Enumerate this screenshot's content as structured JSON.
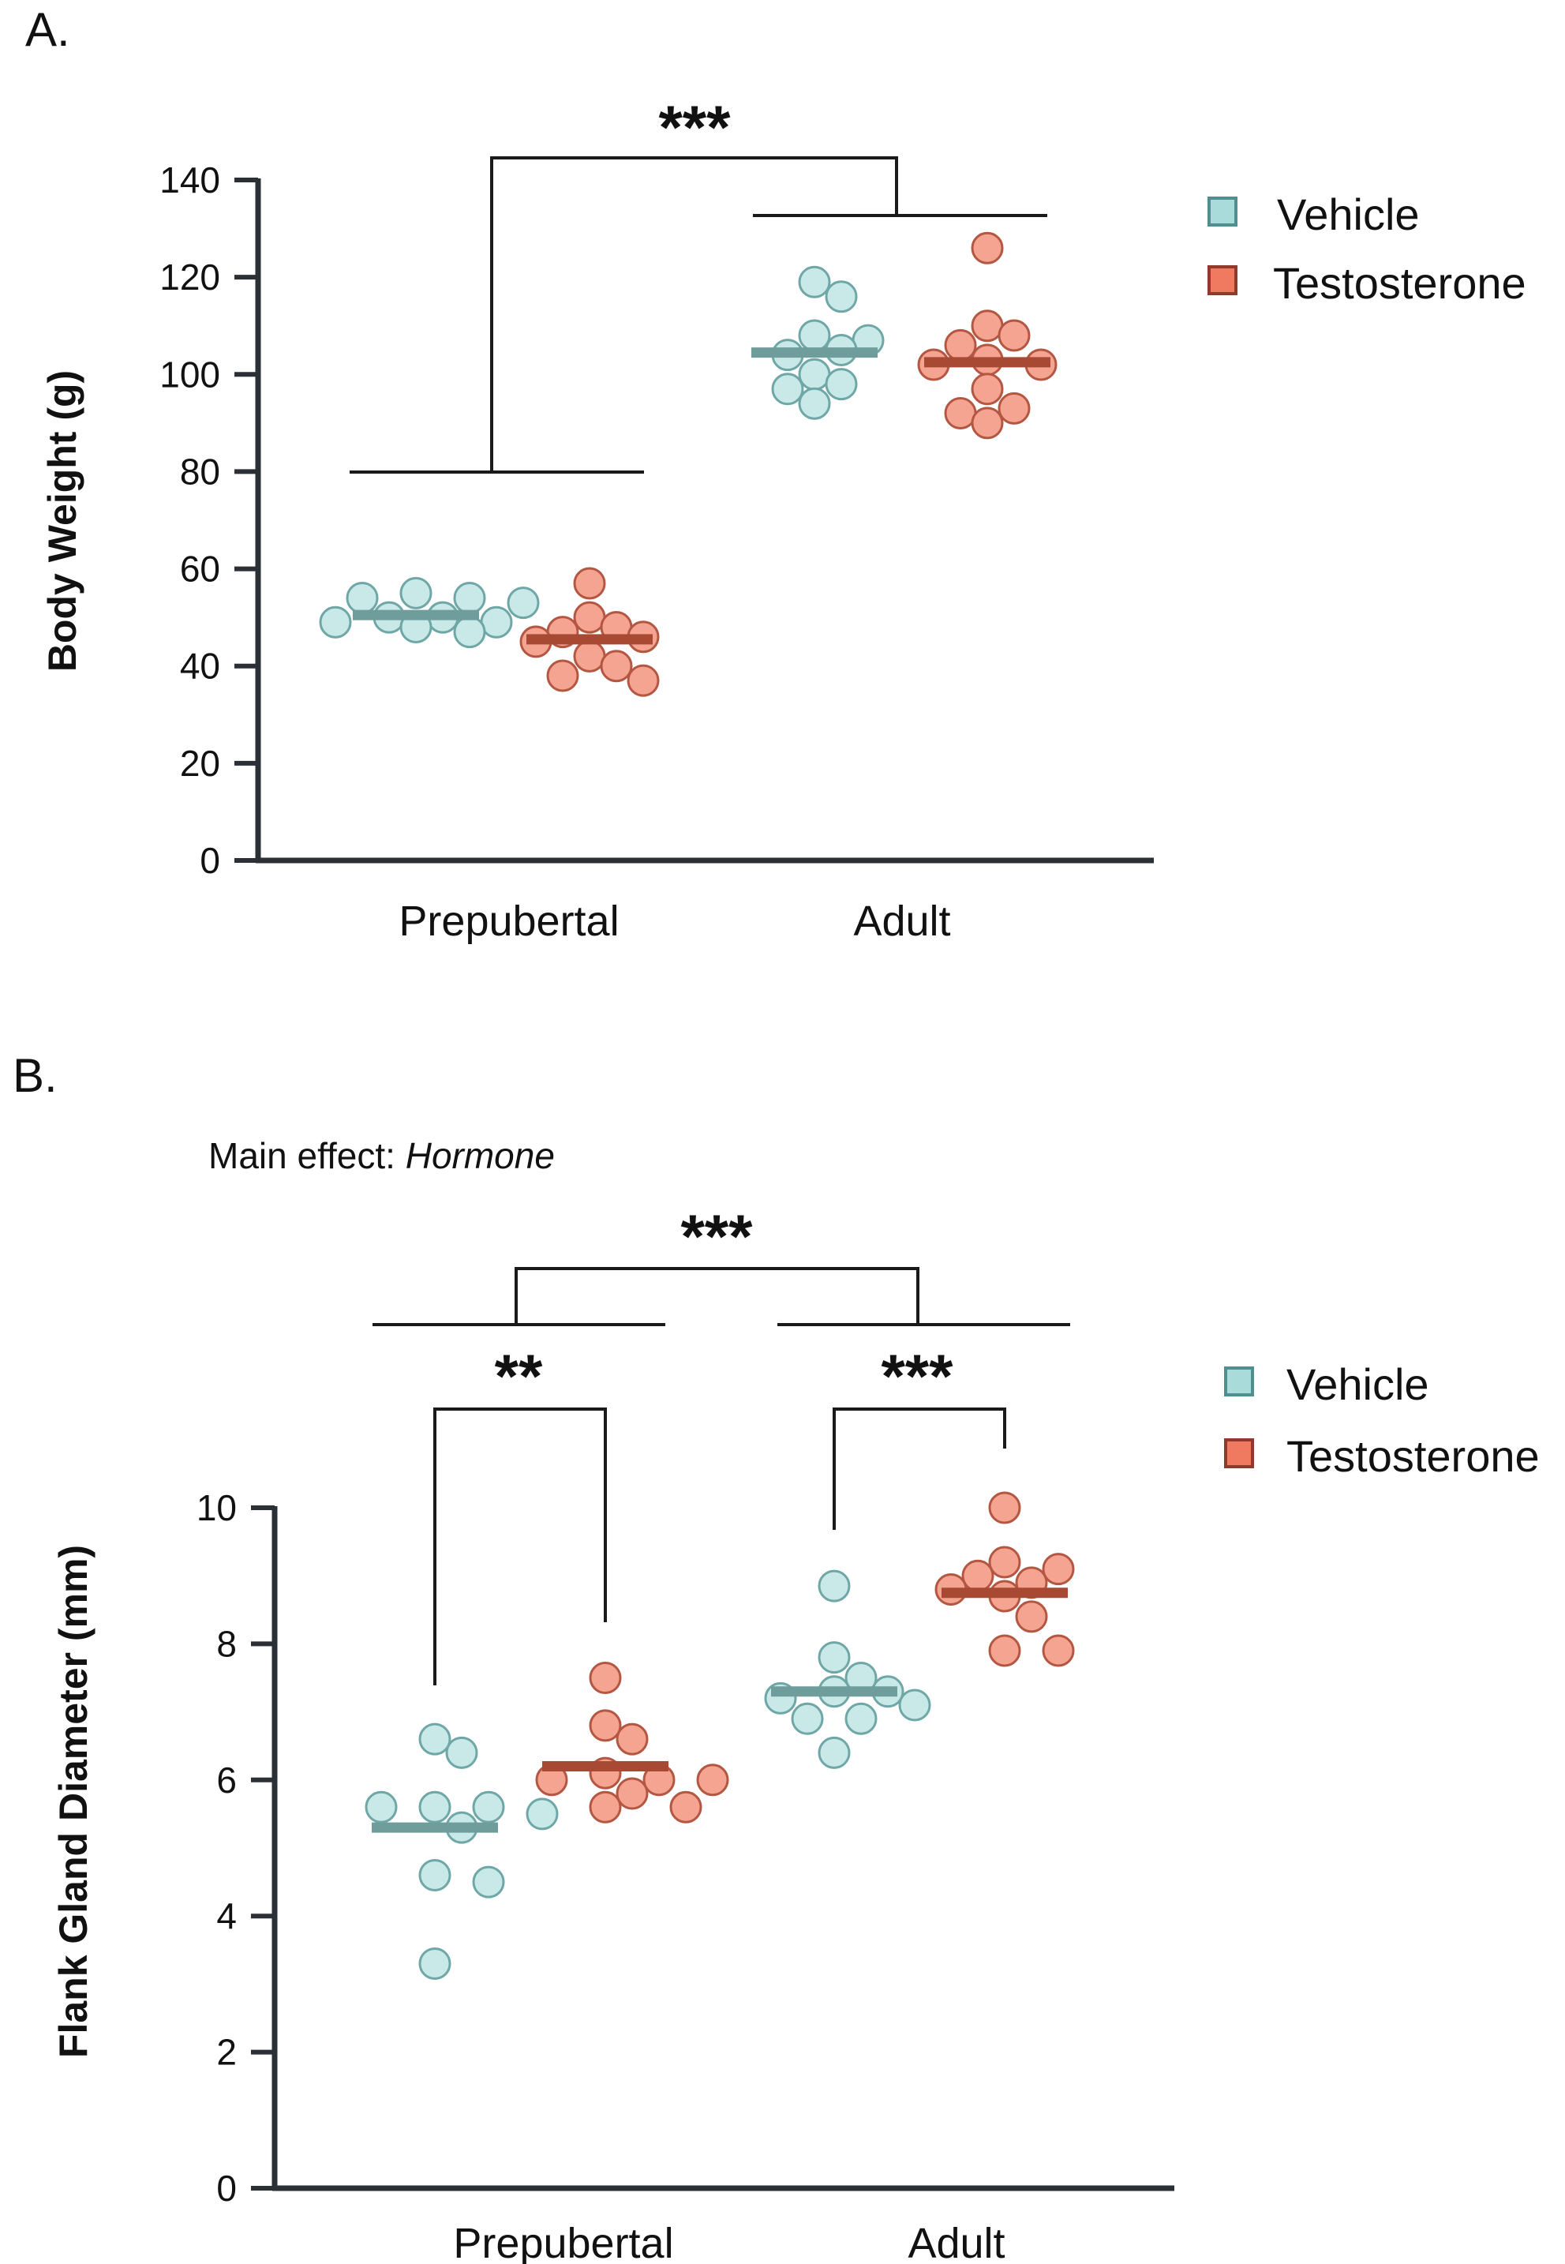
{
  "chart_data": [
    {
      "type": "scatter",
      "panel_label": "A.",
      "title": "",
      "xlabel": "",
      "ylabel": "Body Weight (g)",
      "ylim": [
        0,
        140
      ],
      "yticks": [
        0,
        20,
        40,
        60,
        80,
        100,
        120,
        140
      ],
      "categories": [
        "Prepubertal",
        "Adult"
      ],
      "legend": [
        {
          "name": "Vehicle",
          "fill": "#a9dbda",
          "stroke": "#4f8f8f"
        },
        {
          "name": "Testosterone",
          "fill": "#f07a5f",
          "stroke": "#8f3a2c"
        }
      ],
      "series": [
        {
          "name": "Vehicle",
          "point_fill": "#c9e9e8",
          "point_stroke": "#6fa7a7",
          "mean_color": "#6f9d9c",
          "groups": [
            {
              "category": "Prepubertal",
              "mean": 50.5,
              "values": [
                53,
                54,
                55,
                54,
                50,
                49,
                50,
                48,
                47,
                49
              ]
            },
            {
              "category": "Adult",
              "mean": 104.5,
              "values": [
                119,
                116,
                108,
                107,
                105,
                104,
                100,
                98,
                97,
                94
              ]
            }
          ]
        },
        {
          "name": "Testosterone",
          "point_fill": "#f4a491",
          "point_stroke": "#b45742",
          "mean_color": "#a84a33",
          "groups": [
            {
              "category": "Prepubertal",
              "mean": 45.5,
              "values": [
                57,
                50,
                48,
                47,
                46,
                45,
                42,
                40,
                38,
                37
              ]
            },
            {
              "category": "Adult",
              "mean": 102.5,
              "values": [
                126,
                110,
                108,
                106,
                103,
                102,
                102,
                97,
                93,
                92,
                90
              ]
            }
          ]
        }
      ],
      "significance": [
        {
          "label": "***",
          "between": [
            "Prepubertal",
            "Adult"
          ],
          "level": "age groups"
        }
      ]
    },
    {
      "type": "scatter",
      "panel_label": "B.",
      "annotation_prefix": "Main effect: ",
      "annotation_emphasis": "Hormone",
      "title": "",
      "xlabel": "",
      "ylabel": "Flank Gland Diameter (mm)",
      "ylim": [
        0,
        10
      ],
      "yticks": [
        0,
        2,
        4,
        6,
        8,
        10
      ],
      "categories": [
        "Prepubertal",
        "Adult"
      ],
      "legend": [
        {
          "name": "Vehicle",
          "fill": "#a9dbda",
          "stroke": "#4f8f8f"
        },
        {
          "name": "Testosterone",
          "fill": "#f07a5f",
          "stroke": "#8f3a2c"
        }
      ],
      "series": [
        {
          "name": "Vehicle",
          "point_fill": "#c9e9e8",
          "point_stroke": "#6fa7a7",
          "mean_color": "#6f9d9c",
          "groups": [
            {
              "category": "Prepubertal",
              "mean": 5.3,
              "values": [
                6.6,
                6.4,
                5.6,
                5.6,
                5.6,
                5.5,
                5.3,
                4.6,
                4.5,
                3.3
              ]
            },
            {
              "category": "Adult",
              "mean": 7.3,
              "values": [
                8.85,
                7.8,
                7.5,
                7.3,
                7.3,
                7.2,
                7.1,
                6.9,
                6.9,
                6.4
              ]
            }
          ]
        },
        {
          "name": "Testosterone",
          "point_fill": "#f4a491",
          "point_stroke": "#b45742",
          "mean_color": "#a84a33",
          "groups": [
            {
              "category": "Prepubertal",
              "mean": 6.2,
              "values": [
                7.5,
                6.8,
                6.6,
                6.1,
                6.0,
                6.0,
                6.0,
                5.8,
                5.6,
                5.6
              ]
            },
            {
              "category": "Adult",
              "mean": 8.75,
              "values": [
                10.0,
                9.2,
                9.1,
                9.0,
                8.9,
                8.8,
                8.7,
                8.4,
                7.9,
                7.9
              ]
            }
          ]
        }
      ],
      "significance": [
        {
          "label": "***",
          "between": [
            "Prepubertal",
            "Adult"
          ],
          "level": "age groups"
        },
        {
          "label": "**",
          "between": [
            "Vehicle",
            "Testosterone"
          ],
          "level": "within Prepubertal"
        },
        {
          "label": "***",
          "between": [
            "Vehicle",
            "Testosterone"
          ],
          "level": "within Adult"
        }
      ]
    }
  ]
}
